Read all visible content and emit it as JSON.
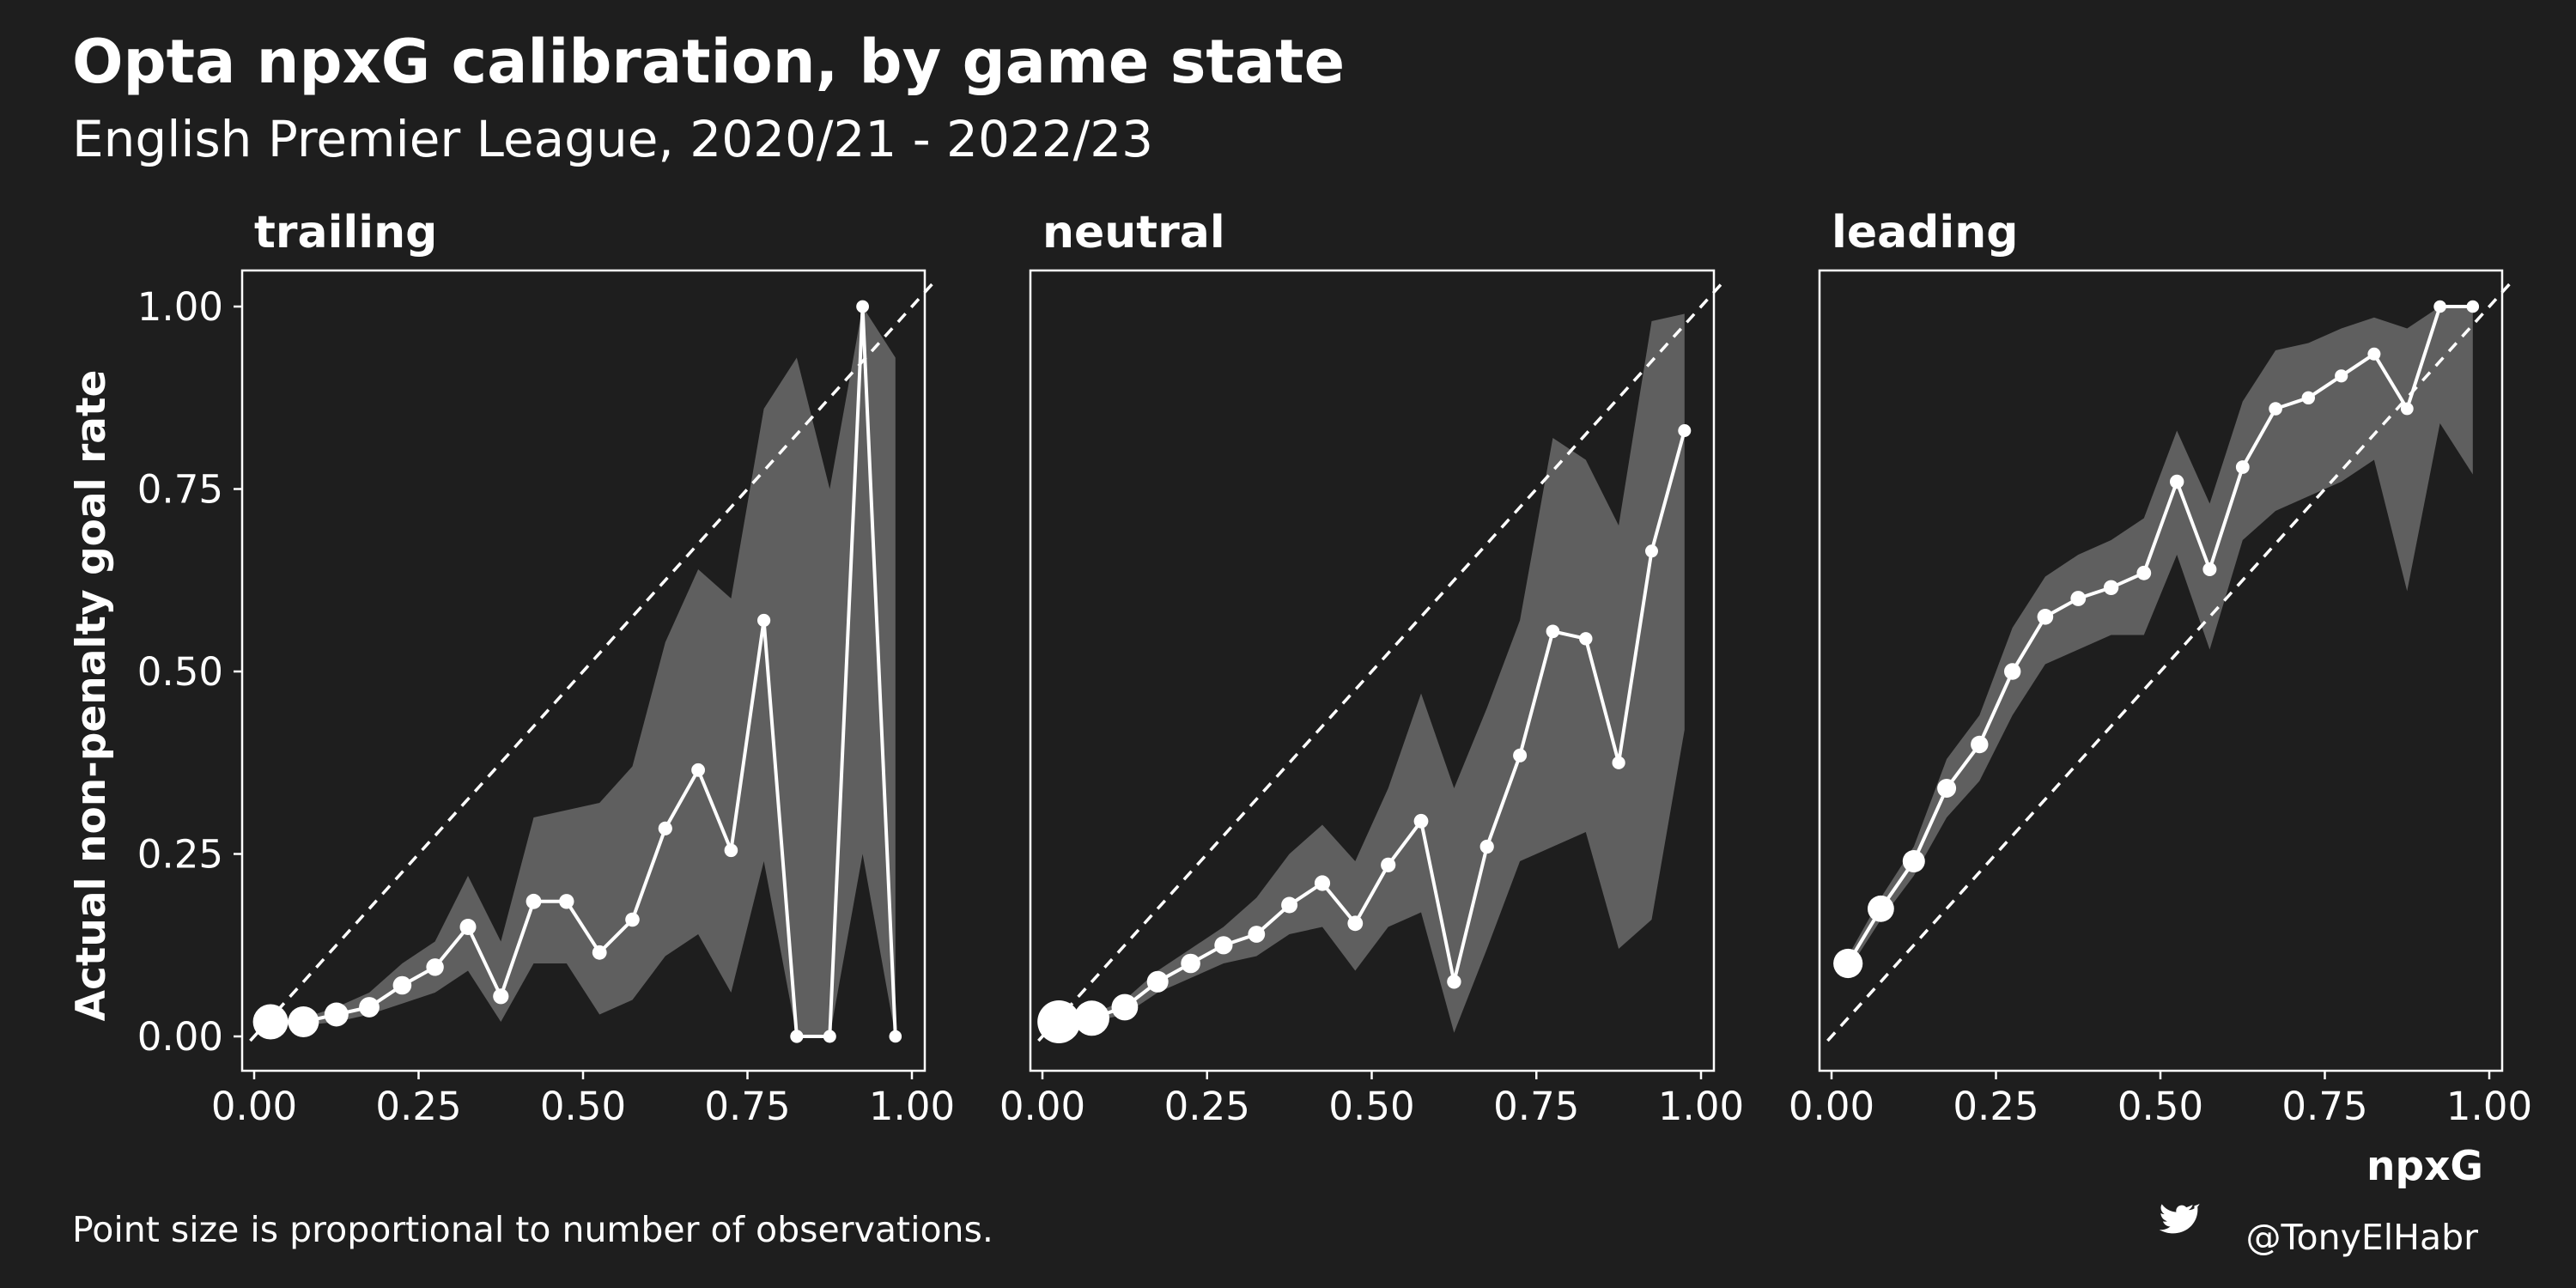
{
  "title": "Opta npxG calibration, by game state",
  "subtitle": "English Premier League, 2020/21 - 2022/23",
  "caption_left": "Point size is proportional to number of observations.",
  "caption_right": "@TonyElHabr",
  "colors": {
    "background": "#1e1e1e",
    "ribbon": "#5f5f5f",
    "line": "#ffffff",
    "reference": "#ffffff"
  },
  "icons": {
    "credit": "twitter-bird-icon"
  },
  "chart_data": [
    {
      "type": "line",
      "facet": "trailing",
      "xlabel": "",
      "ylabel": "Actual non-penalty goal rate",
      "xlim": [
        0,
        1
      ],
      "ylim": [
        -0.02,
        1.05
      ],
      "x_ticks": [
        "0.00",
        "0.25",
        "0.50",
        "0.75",
        "1.00"
      ],
      "y_ticks": [
        "0.00",
        "0.25",
        "0.50",
        "0.75",
        "1.00"
      ],
      "reference_line": "y = x",
      "x": [
        0.025,
        0.075,
        0.125,
        0.175,
        0.225,
        0.275,
        0.325,
        0.375,
        0.425,
        0.475,
        0.525,
        0.575,
        0.625,
        0.675,
        0.725,
        0.775,
        0.825,
        0.875,
        0.925,
        0.975
      ],
      "y": [
        0.02,
        0.02,
        0.03,
        0.04,
        0.07,
        0.095,
        0.15,
        0.055,
        0.185,
        0.185,
        0.115,
        0.16,
        0.285,
        0.365,
        0.255,
        0.57,
        0.0,
        0.0,
        1.0,
        0.0
      ],
      "lower": [
        0.015,
        0.015,
        0.02,
        0.03,
        0.045,
        0.06,
        0.09,
        0.02,
        0.1,
        0.1,
        0.03,
        0.05,
        0.11,
        0.14,
        0.06,
        0.24,
        0.0,
        0.0,
        0.25,
        0.0
      ],
      "upper": [
        0.025,
        0.025,
        0.04,
        0.06,
        0.1,
        0.13,
        0.22,
        0.13,
        0.3,
        0.31,
        0.32,
        0.37,
        0.54,
        0.64,
        0.6,
        0.86,
        0.93,
        0.75,
        1.0,
        0.93
      ],
      "n_obs": [
        9000,
        6000,
        2400,
        1200,
        700,
        500,
        300,
        220,
        180,
        140,
        100,
        80,
        60,
        40,
        30,
        20,
        15,
        12,
        8,
        6
      ]
    },
    {
      "type": "line",
      "facet": "neutral",
      "xlabel": "",
      "ylabel": "",
      "xlim": [
        0,
        1
      ],
      "ylim": [
        -0.02,
        1.05
      ],
      "x_ticks": [
        "0.00",
        "0.25",
        "0.50",
        "0.75",
        "1.00"
      ],
      "y_ticks": [],
      "reference_line": "y = x",
      "x": [
        0.025,
        0.075,
        0.125,
        0.175,
        0.225,
        0.275,
        0.325,
        0.375,
        0.425,
        0.475,
        0.525,
        0.575,
        0.625,
        0.675,
        0.725,
        0.775,
        0.825,
        0.875,
        0.925,
        0.975
      ],
      "y": [
        0.02,
        0.025,
        0.04,
        0.075,
        0.1,
        0.125,
        0.14,
        0.18,
        0.21,
        0.155,
        0.235,
        0.295,
        0.075,
        0.26,
        0.385,
        0.555,
        0.545,
        0.375,
        0.665,
        0.83
      ],
      "lower": [
        0.015,
        0.02,
        0.03,
        0.06,
        0.08,
        0.1,
        0.11,
        0.14,
        0.15,
        0.09,
        0.15,
        0.17,
        0.005,
        0.12,
        0.24,
        0.26,
        0.28,
        0.12,
        0.16,
        0.42
      ],
      "upper": [
        0.025,
        0.03,
        0.05,
        0.09,
        0.12,
        0.15,
        0.19,
        0.25,
        0.29,
        0.24,
        0.34,
        0.47,
        0.34,
        0.45,
        0.57,
        0.82,
        0.79,
        0.7,
        0.98,
        0.99
      ],
      "n_obs": [
        16000,
        9000,
        3500,
        1500,
        900,
        650,
        420,
        300,
        220,
        180,
        130,
        100,
        70,
        55,
        45,
        35,
        25,
        18,
        12,
        10
      ]
    },
    {
      "type": "line",
      "facet": "leading",
      "xlabel": "npxG",
      "ylabel": "",
      "xlim": [
        0,
        1
      ],
      "ylim": [
        -0.02,
        1.05
      ],
      "x_ticks": [
        "0.00",
        "0.25",
        "0.50",
        "0.75",
        "1.00"
      ],
      "y_ticks": [],
      "reference_line": "y = x",
      "x": [
        0.025,
        0.075,
        0.125,
        0.175,
        0.225,
        0.275,
        0.325,
        0.375,
        0.425,
        0.475,
        0.525,
        0.575,
        0.625,
        0.675,
        0.725,
        0.775,
        0.825,
        0.875,
        0.925,
        0.975
      ],
      "y": [
        0.1,
        0.175,
        0.24,
        0.34,
        0.4,
        0.5,
        0.575,
        0.6,
        0.615,
        0.635,
        0.76,
        0.64,
        0.78,
        0.86,
        0.875,
        0.905,
        0.935,
        0.86,
        1.0,
        1.0
      ],
      "lower": [
        0.09,
        0.16,
        0.22,
        0.3,
        0.35,
        0.44,
        0.51,
        0.53,
        0.55,
        0.55,
        0.66,
        0.53,
        0.68,
        0.72,
        0.74,
        0.76,
        0.79,
        0.61,
        0.84,
        0.77
      ],
      "upper": [
        0.11,
        0.19,
        0.26,
        0.38,
        0.44,
        0.56,
        0.63,
        0.66,
        0.68,
        0.71,
        0.83,
        0.73,
        0.87,
        0.94,
        0.95,
        0.97,
        0.985,
        0.97,
        1.0,
        1.0
      ],
      "n_obs": [
        5000,
        3500,
        1800,
        800,
        500,
        350,
        250,
        180,
        140,
        100,
        70,
        50,
        40,
        30,
        22,
        15,
        11,
        8,
        6,
        4
      ]
    }
  ]
}
